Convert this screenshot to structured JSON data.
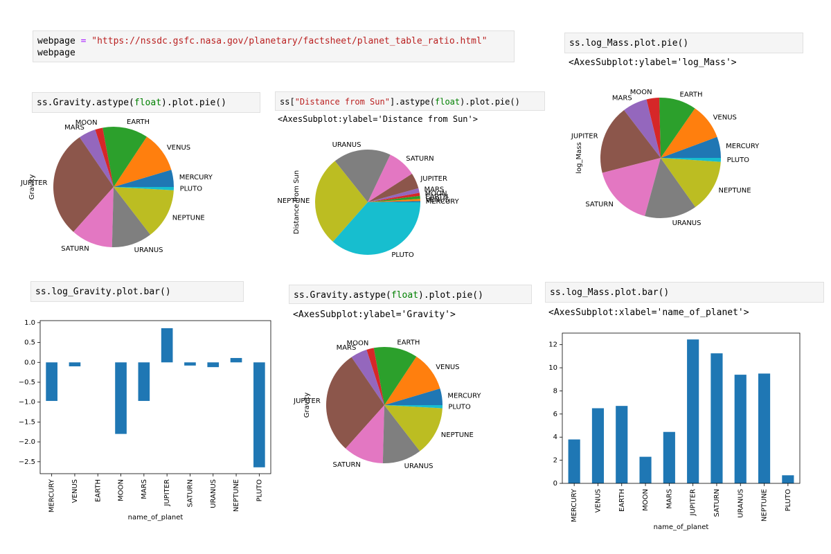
{
  "cells": {
    "webpage": {
      "line1_var": "webpage",
      "line1_op": "=",
      "line1_str": "\"https://nssdc.gsfc.nasa.gov/planetary/factsheet/planet_table_ratio.html\"",
      "line2": "webpage"
    },
    "gravity_pie_1": {
      "pre": "ss.Gravity.astype(",
      "kw": "float",
      "post": ").plot.pie()"
    },
    "distance_pie": {
      "pre": "ss[",
      "str": "\"Distance from Sun\"",
      "mid": "].astype(",
      "kw": "float",
      "post": ").plot.pie()"
    },
    "distance_pie_output": "<AxesSubplot:ylabel='Distance from Sun'>",
    "logmass_pie": "ss.log_Mass.plot.pie()",
    "logmass_pie_output": "<AxesSubplot:ylabel='log_Mass'>",
    "loggravity_bar": "ss.log_Gravity.plot.bar()",
    "gravity_pie_2": {
      "pre": "ss.Gravity.astype(",
      "kw": "float",
      "post": ").plot.pie()"
    },
    "gravity_pie_2_output": "<AxesSubplot:ylabel='Gravity'>",
    "logmass_bar": "ss.log_Mass.plot.bar()",
    "logmass_bar_output": "<AxesSubplot:xlabel='name_of_planet'>"
  },
  "chart_data": [
    {
      "id": "gravity_pie_1",
      "type": "pie",
      "ylabel": "Gravity",
      "labels": [
        "MERCURY",
        "VENUS",
        "EARTH",
        "MOON",
        "MARS",
        "JUPITER",
        "SATURN",
        "URANUS",
        "NEPTUNE",
        "PLUTO"
      ],
      "values": [
        0.378,
        0.907,
        1.0,
        0.166,
        0.377,
        2.36,
        0.916,
        0.889,
        1.12,
        0.071
      ]
    },
    {
      "id": "distance_pie",
      "type": "pie",
      "ylabel": "Distance from Sun",
      "labels": [
        "MERCURY",
        "VENUS",
        "EARTH",
        "MOON",
        "MARS",
        "JUPITER",
        "SATURN",
        "URANUS",
        "NEPTUNE",
        "PLUTO"
      ],
      "values": [
        0.387,
        0.723,
        1.0,
        1.0,
        1.52,
        5.2,
        9.58,
        19.2,
        30.05,
        39.48
      ]
    },
    {
      "id": "logmass_pie",
      "type": "pie",
      "ylabel": "log_Mass",
      "labels": [
        "MERCURY",
        "VENUS",
        "EARTH",
        "MOON",
        "MARS",
        "JUPITER",
        "SATURN",
        "URANUS",
        "NEPTUNE",
        "PLUTO"
      ],
      "values": [
        3.8,
        6.5,
        6.7,
        2.3,
        4.45,
        12.45,
        11.25,
        9.4,
        9.5,
        0.7
      ]
    },
    {
      "id": "loggravity_bar",
      "type": "bar",
      "xlabel": "name_of_planet",
      "categories": [
        "MERCURY",
        "VENUS",
        "EARTH",
        "MOON",
        "MARS",
        "JUPITER",
        "SATURN",
        "URANUS",
        "NEPTUNE",
        "PLUTO"
      ],
      "values": [
        -0.97,
        -0.1,
        0.0,
        -1.8,
        -0.97,
        0.86,
        -0.08,
        -0.12,
        0.11,
        -2.64
      ],
      "ylim": [
        -2.8,
        1.05
      ],
      "yticks": [
        1.0,
        0.5,
        0.0,
        -0.5,
        -1.0,
        -1.5,
        -2.0,
        -2.5
      ],
      "ytick_labels": [
        "1.0",
        "0.5",
        "0.0",
        "−0.5",
        "−1.0",
        "−1.5",
        "−2.0",
        "−2.5"
      ]
    },
    {
      "id": "gravity_pie_2",
      "type": "pie",
      "ylabel": "Gravity",
      "labels": [
        "MERCURY",
        "VENUS",
        "EARTH",
        "MOON",
        "MARS",
        "JUPITER",
        "SATURN",
        "URANUS",
        "NEPTUNE",
        "PLUTO"
      ],
      "values": [
        0.378,
        0.907,
        1.0,
        0.166,
        0.377,
        2.36,
        0.916,
        0.889,
        1.12,
        0.071
      ]
    },
    {
      "id": "logmass_bar",
      "type": "bar",
      "xlabel": "name_of_planet",
      "categories": [
        "MERCURY",
        "VENUS",
        "EARTH",
        "MOON",
        "MARS",
        "JUPITER",
        "SATURN",
        "URANUS",
        "NEPTUNE",
        "PLUTO"
      ],
      "values": [
        3.8,
        6.5,
        6.7,
        2.3,
        4.45,
        12.45,
        11.25,
        9.4,
        9.5,
        0.7
      ],
      "ylim": [
        0,
        13.0
      ],
      "yticks": [
        0,
        2,
        4,
        6,
        8,
        10,
        12
      ],
      "ytick_labels": [
        "0",
        "2",
        "4",
        "6",
        "8",
        "10",
        "12"
      ]
    }
  ],
  "colors": [
    "#1f77b4",
    "#ff7f0e",
    "#2ca02c",
    "#d62728",
    "#9467bd",
    "#8c564b",
    "#e377c2",
    "#7f7f7f",
    "#bcbd22",
    "#17becf"
  ],
  "bar_color": "#1f77b4"
}
